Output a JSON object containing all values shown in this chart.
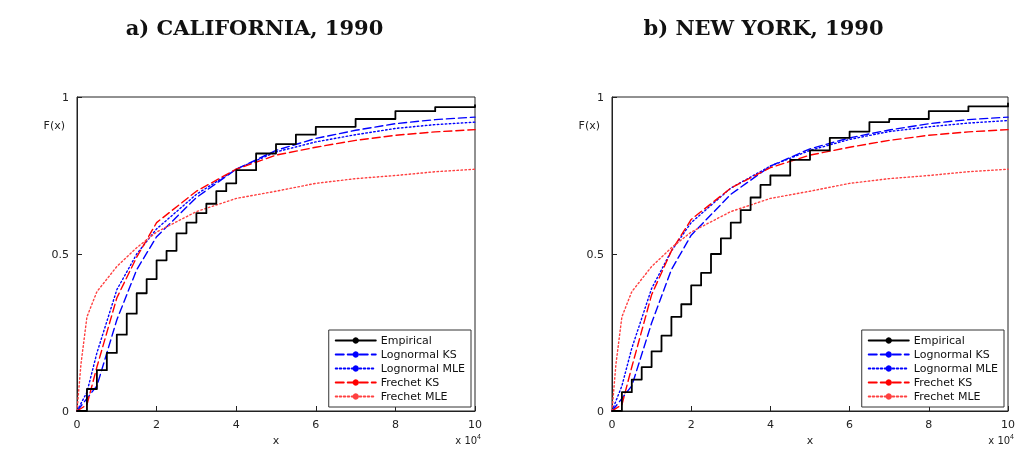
{
  "chart_data": [
    {
      "type": "line",
      "title": "a) CALIFORNIA, 1990",
      "xlabel": "x",
      "ylabel": "F(x)",
      "annotations": [
        "x 10$^{4}$"
      ],
      "xlim": [
        0,
        10
      ],
      "xticks": [
        0,
        2,
        4,
        6,
        8,
        10
      ],
      "ylim": [
        0,
        1
      ],
      "yticks": [
        0,
        0.5,
        1
      ],
      "grid": false,
      "legend": "bottom right",
      "marker": "none",
      "series": [
        {
          "name": "Empirical",
          "type": "step",
          "color": "#000000",
          "line_style": "solid",
          "x": [
            0,
            0.25,
            0.5,
            0.75,
            1,
            1.25,
            1.5,
            1.75,
            2,
            2.25,
            2.5,
            2.75,
            3,
            3.25,
            3.5,
            3.75,
            4,
            4.5,
            5,
            5.5,
            6,
            7,
            8,
            9,
            10
          ],
          "values": [
            0,
            0.07,
            0.13,
            0.185,
            0.243,
            0.31,
            0.375,
            0.42,
            0.48,
            0.51,
            0.566,
            0.6,
            0.63,
            0.66,
            0.7,
            0.725,
            0.767,
            0.82,
            0.85,
            0.88,
            0.905,
            0.93,
            0.955,
            0.968,
            0.974
          ]
        },
        {
          "name": "Lognormal KS",
          "color": "#0000ff",
          "line_style": "dashed",
          "x": [
            0,
            0.5,
            1,
            1.5,
            2,
            3,
            4,
            5,
            6,
            7,
            8,
            9,
            10
          ],
          "values": [
            0,
            0.08,
            0.29,
            0.45,
            0.555,
            0.68,
            0.77,
            0.83,
            0.868,
            0.894,
            0.915,
            0.928,
            0.936
          ]
        },
        {
          "name": "Lognormal MLE",
          "color": "#0000ff",
          "line_style": "dotted",
          "x": [
            0,
            0.25,
            0.5,
            1,
            1.5,
            2,
            3,
            4,
            5,
            6,
            7,
            8,
            9,
            10
          ],
          "values": [
            0,
            0.06,
            0.185,
            0.386,
            0.5,
            0.58,
            0.69,
            0.77,
            0.825,
            0.857,
            0.88,
            0.9,
            0.912,
            0.92
          ]
        },
        {
          "name": "Frechet KS",
          "color": "#ff0000",
          "line_style": "dashed",
          "x": [
            0,
            0.25,
            0.5,
            1,
            1.5,
            2,
            3,
            4,
            5,
            6,
            7,
            8,
            9,
            10
          ],
          "values": [
            0,
            0.02,
            0.14,
            0.36,
            0.49,
            0.6,
            0.7,
            0.77,
            0.815,
            0.84,
            0.862,
            0.878,
            0.889,
            0.896
          ]
        },
        {
          "name": "Frechet MLE",
          "color": "#ff4040",
          "line_style": "dotted",
          "x": [
            0,
            0.1,
            0.25,
            0.5,
            1,
            1.5,
            2,
            3,
            4,
            5,
            6,
            7,
            8,
            9,
            10
          ],
          "values": [
            0,
            0.15,
            0.3,
            0.38,
            0.46,
            0.52,
            0.57,
            0.635,
            0.677,
            0.7,
            0.725,
            0.74,
            0.75,
            0.762,
            0.77
          ]
        }
      ]
    },
    {
      "type": "line",
      "title": "b) NEW YORK, 1990",
      "xlabel": "x",
      "ylabel": "F(x)",
      "annotations": [
        "x 10$^{4}$"
      ],
      "xlim": [
        0,
        10
      ],
      "xticks": [
        0,
        2,
        4,
        6,
        8,
        10
      ],
      "ylim": [
        0,
        1
      ],
      "yticks": [
        0,
        0.5,
        1
      ],
      "grid": false,
      "legend": "bottom right",
      "marker": "none",
      "series": [
        {
          "name": "Empirical",
          "type": "step",
          "color": "#000000",
          "line_style": "solid",
          "x": [
            0,
            0.25,
            0.5,
            0.75,
            1,
            1.25,
            1.5,
            1.75,
            2,
            2.25,
            2.5,
            2.75,
            3,
            3.25,
            3.5,
            3.75,
            4,
            4.5,
            5,
            5.5,
            6,
            6.5,
            7,
            8,
            9,
            10
          ],
          "values": [
            0,
            0.06,
            0.1,
            0.14,
            0.19,
            0.24,
            0.3,
            0.34,
            0.4,
            0.44,
            0.5,
            0.55,
            0.6,
            0.64,
            0.68,
            0.72,
            0.75,
            0.8,
            0.83,
            0.87,
            0.89,
            0.92,
            0.93,
            0.955,
            0.97,
            0.98
          ]
        },
        {
          "name": "Lognormal KS",
          "color": "#0000ff",
          "line_style": "dashed",
          "x": [
            0,
            0.5,
            1,
            1.5,
            2,
            3,
            4,
            5,
            6,
            7,
            8,
            9,
            10
          ],
          "values": [
            0,
            0.08,
            0.28,
            0.45,
            0.56,
            0.69,
            0.78,
            0.835,
            0.87,
            0.895,
            0.915,
            0.928,
            0.936
          ]
        },
        {
          "name": "Lognormal MLE",
          "color": "#0000ff",
          "line_style": "dotted",
          "x": [
            0,
            0.25,
            0.5,
            1,
            1.5,
            2,
            3,
            4,
            5,
            6,
            7,
            8,
            9,
            10
          ],
          "values": [
            0,
            0.08,
            0.2,
            0.39,
            0.51,
            0.6,
            0.71,
            0.78,
            0.83,
            0.865,
            0.89,
            0.905,
            0.917,
            0.925
          ]
        },
        {
          "name": "Frechet KS",
          "color": "#ff0000",
          "line_style": "dashed",
          "x": [
            0,
            0.25,
            0.5,
            1,
            1.5,
            2,
            3,
            4,
            5,
            6,
            7,
            8,
            9,
            10
          ],
          "values": [
            0,
            0.02,
            0.14,
            0.37,
            0.51,
            0.61,
            0.71,
            0.775,
            0.815,
            0.84,
            0.862,
            0.878,
            0.889,
            0.896
          ]
        },
        {
          "name": "Frechet MLE",
          "color": "#ff4040",
          "line_style": "dotted",
          "x": [
            0,
            0.1,
            0.25,
            0.5,
            1,
            1.5,
            2,
            3,
            4,
            5,
            6,
            7,
            8,
            9,
            10
          ],
          "values": [
            0,
            0.15,
            0.3,
            0.38,
            0.46,
            0.52,
            0.57,
            0.635,
            0.677,
            0.7,
            0.725,
            0.74,
            0.75,
            0.762,
            0.77
          ]
        }
      ]
    }
  ]
}
